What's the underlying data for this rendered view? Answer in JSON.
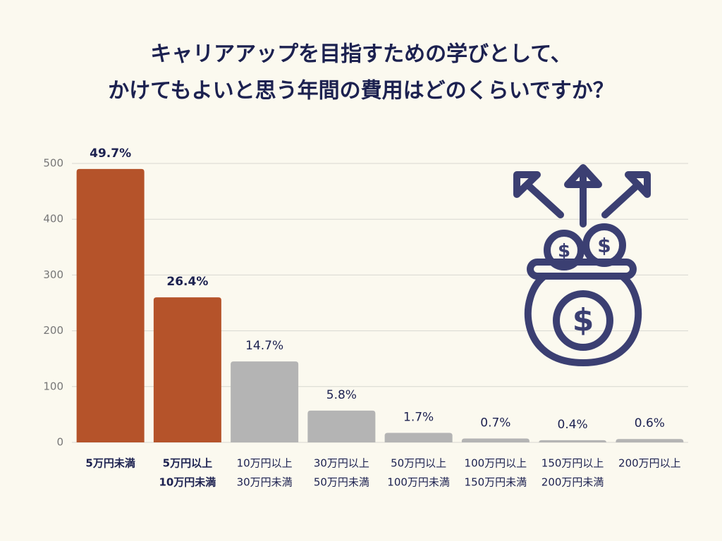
{
  "chart_data": {
    "type": "bar",
    "title": [
      "キャリアアップを目指すための学びとして、",
      "かけてもよいと思う年間の費用はどのくらいですか？"
    ],
    "categories": [
      [
        "5万円未満"
      ],
      [
        "5万円以上",
        "10万円未満"
      ],
      [
        "10万円以上",
        "30万円未満"
      ],
      [
        "30万円以上",
        "50万円未満"
      ],
      [
        "50万円以上",
        "100万円未満"
      ],
      [
        "100万円以上",
        "150万円未満"
      ],
      [
        "150万円以上",
        "200万円未満"
      ],
      [
        "200万円以上"
      ]
    ],
    "values": [
      490,
      260,
      145,
      57,
      17,
      7,
      4,
      6
    ],
    "value_labels": [
      "49.7%",
      "26.4%",
      "14.7%",
      "5.8%",
      "1.7%",
      "0.7%",
      "0.4%",
      "0.6%"
    ],
    "colors": [
      "#b5532a",
      "#b5532a",
      "#b4b4b4",
      "#b4b4b4",
      "#b4b4b4",
      "#b4b4b4",
      "#b4b4b4",
      "#b4b4b4"
    ],
    "emphasis": [
      true,
      true,
      false,
      false,
      false,
      false,
      false,
      false
    ],
    "ylim": [
      0,
      500
    ],
    "yticks": [
      0,
      100,
      200,
      300,
      400,
      500
    ],
    "grid": true
  }
}
